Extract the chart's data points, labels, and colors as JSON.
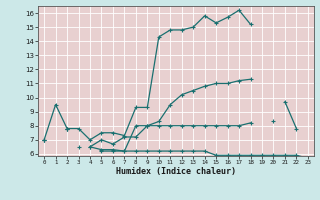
{
  "xlabel": "Humidex (Indice chaleur)",
  "bg_color": "#cce8e8",
  "plot_bg_color": "#e8d0d0",
  "grid_color": "#ffffff",
  "line_color": "#1a7070",
  "xlim": [
    -0.5,
    23.5
  ],
  "ylim": [
    6,
    16.5
  ],
  "xmin": 0,
  "xmax": 23,
  "ymin": 6,
  "ymax": 16,
  "xticks": [
    0,
    1,
    2,
    3,
    4,
    5,
    6,
    7,
    8,
    9,
    10,
    11,
    12,
    13,
    14,
    15,
    16,
    17,
    18,
    19,
    20,
    21,
    22,
    23
  ],
  "yticks": [
    6,
    7,
    8,
    9,
    10,
    11,
    12,
    13,
    14,
    15,
    16
  ],
  "curve1_y": [
    7.0,
    9.5,
    7.8,
    7.8,
    7.0,
    7.5,
    7.5,
    7.3,
    9.3,
    9.3,
    14.3,
    14.8,
    14.8,
    15.0,
    15.8,
    15.3,
    15.7,
    16.2,
    15.2,
    null,
    null,
    9.7,
    7.8,
    null
  ],
  "curve2_y": [
    7.0,
    null,
    7.8,
    null,
    6.5,
    7.0,
    6.7,
    7.2,
    7.2,
    8.0,
    8.3,
    9.5,
    10.2,
    10.5,
    10.8,
    11.0,
    11.0,
    11.2,
    11.3,
    null,
    null,
    null,
    null,
    null
  ],
  "curve3_y": [
    7.0,
    null,
    7.8,
    null,
    6.5,
    6.3,
    6.3,
    6.2,
    8.0,
    8.0,
    8.0,
    8.0,
    8.0,
    8.0,
    8.0,
    8.0,
    8.0,
    8.0,
    8.2,
    null,
    8.3,
    null,
    null,
    null
  ],
  "curve4_y": [
    null,
    null,
    null,
    6.5,
    null,
    6.2,
    6.2,
    6.2,
    6.2,
    6.2,
    6.2,
    6.2,
    6.2,
    6.2,
    6.2,
    5.9,
    5.9,
    5.9,
    5.9,
    5.9,
    5.9,
    5.9,
    5.9,
    5.7
  ]
}
